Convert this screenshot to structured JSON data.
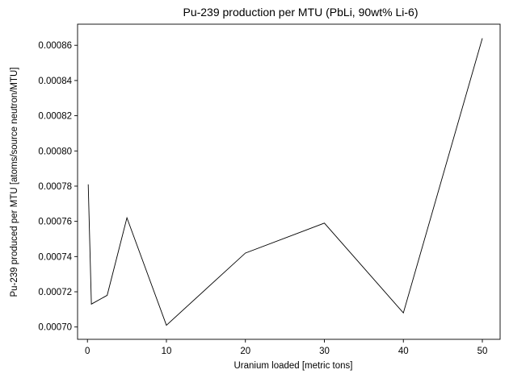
{
  "chart_data": {
    "type": "line",
    "title": "Pu-239 production per MTU (PbLi, 90wt% Li-6)",
    "xlabel": "Uranium loaded [metric tons]",
    "ylabel": "Pu-239 produced per MTU [atoms/source neutron/MTU]",
    "xlim": [
      -1.25,
      52.25
    ],
    "ylim": [
      0.000693,
      0.000872
    ],
    "xticks": [
      0,
      10,
      20,
      30,
      40,
      50
    ],
    "xtick_labels": [
      "0",
      "10",
      "20",
      "30",
      "40",
      "50"
    ],
    "yticks": [
      0.0007,
      0.00072,
      0.00074,
      0.00076,
      0.00078,
      0.0008,
      0.00082,
      0.00084,
      0.00086
    ],
    "ytick_labels": [
      "0.00070",
      "0.00072",
      "0.00074",
      "0.00076",
      "0.00078",
      "0.00080",
      "0.00082",
      "0.00084",
      "0.00086"
    ],
    "grid": false,
    "series": [
      {
        "color": "#000000",
        "x": [
          0.1,
          0.5,
          2.5,
          5,
          10,
          20,
          30,
          40,
          50
        ],
        "y": [
          0.000781,
          0.000713,
          0.000718,
          0.000762,
          0.000701,
          0.000742,
          0.000759,
          0.000708,
          0.000864
        ]
      }
    ]
  }
}
